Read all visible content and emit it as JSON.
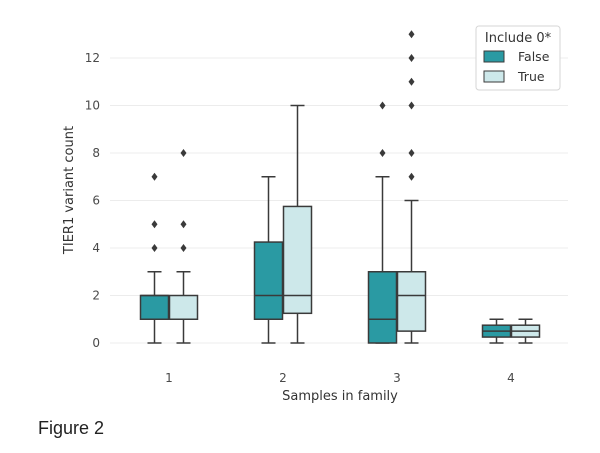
{
  "chart_data": {
    "type": "boxplot",
    "xlabel": "Samples in family",
    "ylabel": "TIER1 variant count",
    "categories": [
      "1",
      "2",
      "3",
      "4"
    ],
    "yticks": [
      0,
      2,
      4,
      6,
      8,
      10,
      12
    ],
    "ylim": [
      -0.4,
      13.5
    ],
    "grid": true,
    "legend": {
      "title": "Include 0*",
      "position": "top-right"
    },
    "series": [
      {
        "name": "False",
        "color": "#2a9aa3",
        "boxes": [
          {
            "min": 0,
            "q1": 1,
            "median": 2,
            "q3": 2,
            "max": 3,
            "outliers": [
              4,
              5,
              7
            ]
          },
          {
            "min": 0,
            "q1": 1,
            "median": 2,
            "q3": 4.25,
            "max": 7,
            "outliers": []
          },
          {
            "min": 0,
            "q1": 0,
            "median": 1,
            "q3": 3,
            "max": 7,
            "outliers": [
              8,
              10
            ]
          },
          {
            "min": 0,
            "q1": 0.25,
            "median": 0.5,
            "q3": 0.75,
            "max": 1,
            "outliers": []
          }
        ]
      },
      {
        "name": "True",
        "color": "#cde8ea",
        "boxes": [
          {
            "min": 0,
            "q1": 1,
            "median": 1,
            "q3": 2,
            "max": 3,
            "outliers": [
              4,
              5,
              8
            ]
          },
          {
            "min": 0,
            "q1": 1.25,
            "median": 2,
            "q3": 5.75,
            "max": 10,
            "outliers": []
          },
          {
            "min": 0,
            "q1": 0.5,
            "median": 2,
            "q3": 3,
            "max": 6,
            "outliers": [
              7,
              8,
              10,
              11,
              12,
              13
            ]
          },
          {
            "min": 0,
            "q1": 0.25,
            "median": 0.5,
            "q3": 0.75,
            "max": 1,
            "outliers": []
          }
        ]
      }
    ]
  },
  "caption": "Figure 2"
}
